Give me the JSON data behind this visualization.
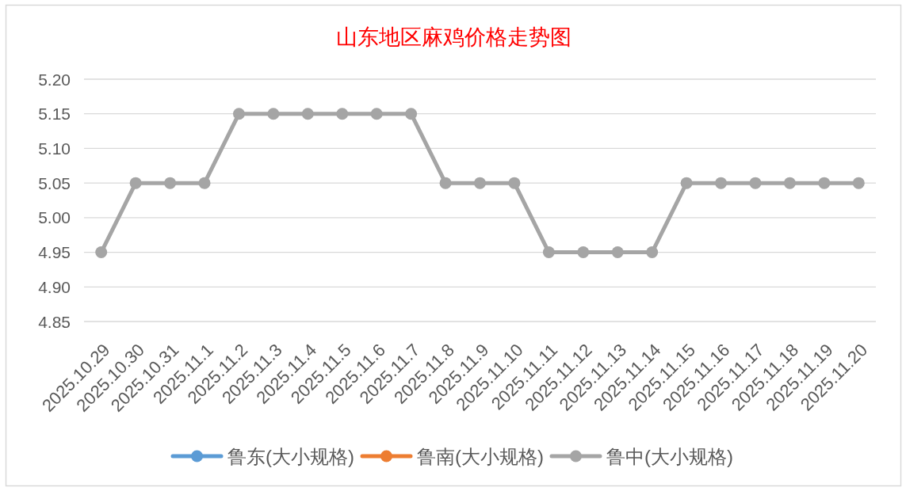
{
  "chart_data": {
    "type": "line",
    "title": "山东地区麻鸡价格走势图",
    "categories": [
      "2025.10.29",
      "2025.10.30",
      "2025.10.31",
      "2025.11.1",
      "2025.11.2",
      "2025.11.3",
      "2025.11.4",
      "2025.11.5",
      "2025.11.6",
      "2025.11.7",
      "2025.11.8",
      "2025.11.9",
      "2025.11.10",
      "2025.11.11",
      "2025.11.12",
      "2025.11.13",
      "2025.11.14",
      "2025.11.15",
      "2025.11.16",
      "2025.11.17",
      "2025.11.18",
      "2025.11.19",
      "2025.11.20"
    ],
    "series": [
      {
        "name": "鲁东(大小规格)",
        "color": "#5b9bd5",
        "values": [
          null,
          null,
          null,
          null,
          null,
          null,
          null,
          null,
          null,
          null,
          null,
          null,
          null,
          null,
          null,
          null,
          null,
          null,
          null,
          null,
          null,
          null,
          null
        ]
      },
      {
        "name": "鲁南(大小规格)",
        "color": "#ed7d31",
        "values": [
          null,
          null,
          null,
          null,
          null,
          null,
          null,
          null,
          null,
          null,
          null,
          null,
          null,
          null,
          null,
          null,
          null,
          null,
          null,
          null,
          null,
          null,
          null
        ]
      },
      {
        "name": "鲁中(大小规格)",
        "color": "#a5a5a5",
        "values": [
          4.95,
          5.05,
          5.05,
          5.05,
          5.15,
          5.15,
          5.15,
          5.15,
          5.15,
          5.15,
          5.05,
          5.05,
          5.05,
          4.95,
          4.95,
          4.95,
          4.95,
          5.05,
          5.05,
          5.05,
          5.05,
          5.05,
          5.05
        ]
      }
    ],
    "ylim": [
      4.85,
      5.2
    ],
    "yticks": [
      4.85,
      {
        "value": 4.9,
        "label": "4.90"
      },
      4.95,
      {
        "value": 5,
        "label": "5.00"
      },
      5.05,
      {
        "value": 5.1,
        "label": "5.10"
      },
      5.15,
      {
        "value": 5.2,
        "label": "5.20"
      }
    ],
    "grid": "y",
    "legend": "bottom",
    "marker": "circle",
    "line_style": "solid"
  }
}
